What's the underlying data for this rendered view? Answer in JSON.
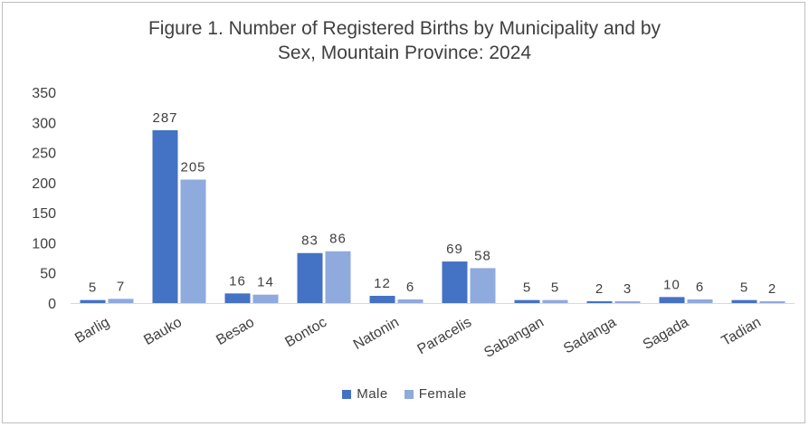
{
  "chart_data": {
    "type": "bar",
    "title_line1": "Figure 1. Number of Registered Births by Municipality and by",
    "title_line2": "Sex, Mountain Province: 2024",
    "categories": [
      "Barlig",
      "Bauko",
      "Besao",
      "Bontoc",
      "Natonin",
      "Paracelis",
      "Sabangan",
      "Sadanga",
      "Sagada",
      "Tadian"
    ],
    "series": [
      {
        "name": "Male",
        "values": [
          5,
          287,
          16,
          83,
          12,
          69,
          5,
          2,
          10,
          5
        ],
        "color": "#4472c4"
      },
      {
        "name": "Female",
        "values": [
          7,
          205,
          14,
          86,
          6,
          58,
          5,
          3,
          6,
          2
        ],
        "color": "#8faadc"
      }
    ],
    "ylim": [
      0,
      350
    ],
    "yticks": [
      0,
      50,
      100,
      150,
      200,
      250,
      300,
      350
    ],
    "grid": false,
    "legend_position": "bottom"
  }
}
